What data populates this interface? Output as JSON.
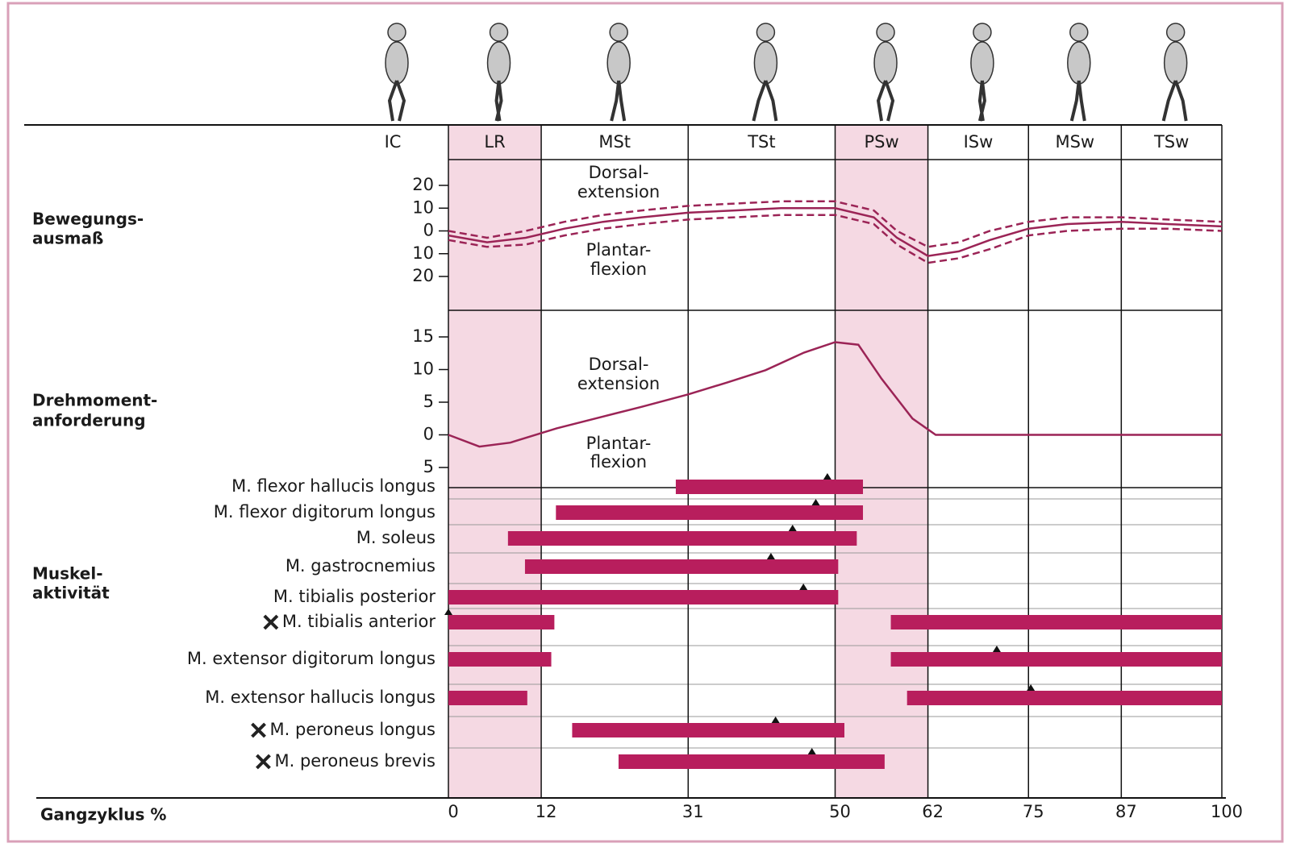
{
  "gait_cycle": {
    "label": "Gangzyklus %",
    "xlim": [
      0,
      100
    ],
    "xticks": [
      0,
      12,
      31,
      50,
      62,
      75,
      87,
      100
    ],
    "phases": [
      {
        "label": "IC",
        "shaded": false
      },
      {
        "label": "LR",
        "shaded": true
      },
      {
        "label": "MSt",
        "shaded": false
      },
      {
        "label": "TSt",
        "shaded": false
      },
      {
        "label": "PSw",
        "shaded": true
      },
      {
        "label": "ISw",
        "shaded": false
      },
      {
        "label": "MSw",
        "shaded": false
      },
      {
        "label": "TSw",
        "shaded": false
      }
    ]
  },
  "chart_data": [
    {
      "type": "line",
      "section_label": [
        "Bewegungs-",
        "ausmaß"
      ],
      "annotations": [
        [
          "Dorsal-",
          "extension"
        ],
        [
          "Plantar-",
          "flexion"
        ]
      ],
      "ylim": [
        -20,
        20
      ],
      "yticks": [
        20,
        10,
        0,
        {
          "value": -10,
          "label": "10"
        },
        {
          "value": -20,
          "label": "20"
        }
      ],
      "x": [
        0,
        5,
        10,
        15,
        20,
        25,
        31,
        37,
        43,
        50,
        55,
        58,
        62,
        66,
        70,
        75,
        80,
        87,
        93,
        100
      ],
      "series": [
        {
          "color": "#9b2456",
          "dashed": false,
          "values": [
            -2,
            -5,
            -3,
            1,
            4,
            6,
            8,
            9,
            10,
            10,
            6,
            -3,
            -11,
            -9,
            -4,
            1,
            3,
            4,
            3,
            2
          ]
        },
        {
          "color": "#9b2456",
          "dashed": true,
          "values": [
            0,
            -3,
            0,
            4,
            7,
            9,
            11,
            12,
            13,
            13,
            9,
            0,
            -7,
            -5,
            0,
            4,
            6,
            6,
            5,
            4
          ]
        },
        {
          "color": "#9b2456",
          "dashed": true,
          "values": [
            -4,
            -7,
            -6,
            -2,
            1,
            3,
            5,
            6,
            7,
            7,
            3,
            -6,
            -14,
            -12,
            -8,
            -2,
            0,
            1,
            1,
            0
          ]
        }
      ]
    },
    {
      "type": "line",
      "section_label": [
        "Drehmoment-",
        "anforderung"
      ],
      "annotations": [
        [
          "Dorsal-",
          "extension"
        ],
        [
          "Plantar-",
          "flexion"
        ]
      ],
      "ylim": [
        -5,
        15
      ],
      "yticks": [
        15,
        10,
        5,
        0,
        {
          "value": -5,
          "label": "5"
        }
      ],
      "x": [
        0,
        4,
        8,
        14,
        20,
        25,
        31,
        36,
        41,
        46,
        50,
        53,
        56,
        60,
        63,
        70,
        80,
        90,
        100
      ],
      "series": [
        {
          "color": "#9b2456",
          "dashed": false,
          "values": [
            0,
            -1.8,
            -1.2,
            1,
            2.8,
            4.3,
            6.2,
            8,
            9.9,
            12.6,
            14.2,
            13.8,
            8.6,
            2.5,
            0,
            0,
            0,
            0,
            0
          ]
        }
      ]
    },
    {
      "type": "gantt",
      "section_label": [
        "Muskel-",
        "aktivität"
      ],
      "color": "#b81e5d",
      "rows": [
        {
          "name": "M. flexor hallucis longus",
          "marked": false,
          "segments": [
            [
              29.4,
              53.6
            ]
          ],
          "peak": 49
        },
        {
          "name": "M. flexor digitorum longus",
          "marked": false,
          "segments": [
            [
              13.9,
              53.6
            ]
          ],
          "peak": 47.5
        },
        {
          "name": "M. soleus",
          "marked": false,
          "segments": [
            [
              7.7,
              52.8
            ]
          ],
          "peak": 44.5
        },
        {
          "name": "M. gastrocnemius",
          "marked": false,
          "segments": [
            [
              9.9,
              50.4
            ]
          ],
          "peak": 41.7
        },
        {
          "name": "M. tibialis posterior",
          "marked": false,
          "segments": [
            [
              0,
              50.4
            ]
          ],
          "peak": 45.9
        },
        {
          "name": "M. tibialis anterior",
          "marked": true,
          "segments": [
            [
              0,
              13.7
            ],
            [
              57.2,
              100
            ]
          ],
          "peak": 0
        },
        {
          "name": "M. extensor digitorum longus",
          "marked": false,
          "segments": [
            [
              0,
              13.3
            ],
            [
              57.2,
              100
            ]
          ],
          "peak": 70.9
        },
        {
          "name": "M. extensor hallucis longus",
          "marked": false,
          "segments": [
            [
              0,
              10.2
            ],
            [
              59.3,
              100
            ]
          ],
          "peak": 75.3
        },
        {
          "name": "M. peroneus longus",
          "marked": true,
          "segments": [
            [
              16,
              51.2
            ]
          ],
          "peak": 42.3
        },
        {
          "name": "M. peroneus brevis",
          "marked": true,
          "segments": [
            [
              22,
              56.4
            ]
          ],
          "peak": 47
        }
      ]
    }
  ]
}
